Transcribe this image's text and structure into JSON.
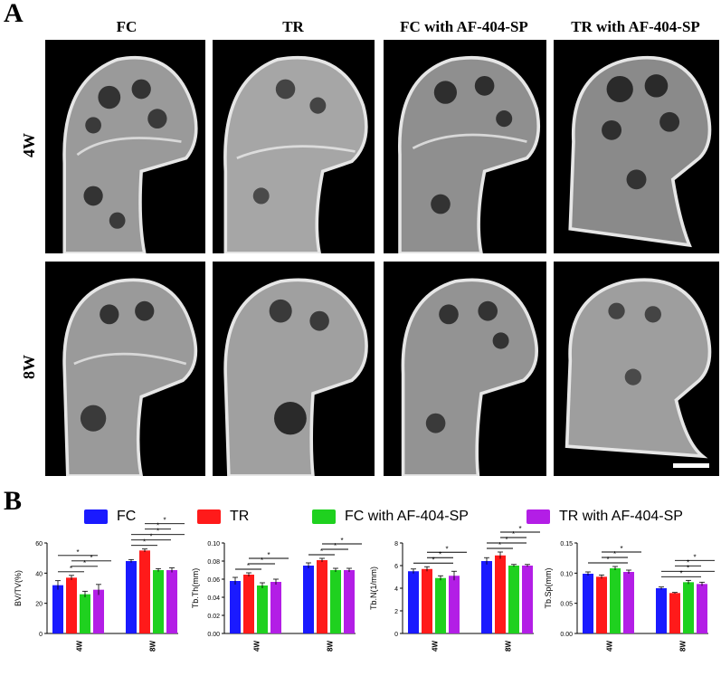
{
  "panels": {
    "a": "A",
    "b": "B"
  },
  "columns": [
    "FC",
    "TR",
    "FC with AF-404-SP",
    "TR with AF-404-SP"
  ],
  "rows": [
    "4W",
    "8W"
  ],
  "legend": [
    {
      "label": "FC",
      "color": "#1a1aff"
    },
    {
      "label": "TR",
      "color": "#ff1a1a"
    },
    {
      "label": "FC with AF-404-SP",
      "color": "#1fd11f"
    },
    {
      "label": "TR with AF-404-SP",
      "color": "#b31ee6"
    }
  ],
  "colors": {
    "FC": "#1a1aff",
    "TR": "#ff1a1a",
    "FCAF": "#1fd11f",
    "TRAF": "#b31ee6",
    "tile_bg": "#000000",
    "bone": "#cfcfcf"
  },
  "chart_data": [
    {
      "type": "bar",
      "ylabel": "BV/TV(%)",
      "categories": [
        "4W",
        "8W"
      ],
      "ylim": [
        0,
        60
      ],
      "yticks": [
        "0",
        "20",
        "40",
        "60"
      ],
      "significance_marker": "*",
      "series": [
        {
          "name": "FC",
          "values": [
            32,
            48
          ],
          "errors": [
            3,
            1
          ]
        },
        {
          "name": "TR",
          "values": [
            37,
            55
          ],
          "errors": [
            1.5,
            1
          ]
        },
        {
          "name": "FC with AF-404-SP",
          "values": [
            26,
            42
          ],
          "errors": [
            2,
            1
          ]
        },
        {
          "name": "TR with AF-404-SP",
          "values": [
            29,
            42
          ],
          "errors": [
            3.5,
            1.5
          ]
        }
      ],
      "brackets": [
        [
          0,
          0,
          1
        ],
        [
          0,
          1,
          2
        ],
        [
          0,
          1,
          3
        ],
        [
          0,
          0,
          2
        ],
        [
          1,
          0,
          1
        ],
        [
          1,
          0,
          2
        ],
        [
          1,
          0,
          3
        ],
        [
          1,
          1,
          2
        ],
        [
          1,
          1,
          3
        ]
      ]
    },
    {
      "type": "bar",
      "ylabel": "Tb.Th(mm)",
      "categories": [
        "4W",
        "8W"
      ],
      "ylim": [
        0,
        0.1
      ],
      "yticks": [
        "0.00",
        "0.02",
        "0.04",
        "0.06",
        "0.08",
        "0.10"
      ],
      "significance_marker": "*",
      "series": [
        {
          "name": "FC",
          "values": [
            0.058,
            0.075
          ],
          "errors": [
            0.004,
            0.003
          ]
        },
        {
          "name": "TR",
          "values": [
            0.065,
            0.081
          ],
          "errors": [
            0.002,
            0.002
          ]
        },
        {
          "name": "FC with AF-404-SP",
          "values": [
            0.053,
            0.07
          ],
          "errors": [
            0.003,
            0.002
          ]
        },
        {
          "name": "TR with AF-404-SP",
          "values": [
            0.057,
            0.07
          ],
          "errors": [
            0.003,
            0.002
          ]
        }
      ],
      "brackets": [
        [
          0,
          0,
          1
        ],
        [
          0,
          1,
          2
        ],
        [
          0,
          1,
          3
        ],
        [
          1,
          0,
          1
        ],
        [
          1,
          1,
          2
        ],
        [
          1,
          1,
          3
        ]
      ]
    },
    {
      "type": "bar",
      "ylabel": "Tb.N(1/mm)",
      "categories": [
        "4W",
        "8W"
      ],
      "ylim": [
        0,
        8
      ],
      "yticks": [
        "0",
        "2",
        "4",
        "6",
        "8"
      ],
      "significance_marker": "*",
      "series": [
        {
          "name": "FC",
          "values": [
            5.5,
            6.4
          ],
          "errors": [
            0.2,
            0.3
          ]
        },
        {
          "name": "TR",
          "values": [
            5.7,
            6.9
          ],
          "errors": [
            0.2,
            0.3
          ]
        },
        {
          "name": "FC with AF-404-SP",
          "values": [
            4.9,
            6.0
          ],
          "errors": [
            0.2,
            0.1
          ]
        },
        {
          "name": "TR with AF-404-SP",
          "values": [
            5.1,
            6.0
          ],
          "errors": [
            0.4,
            0.1
          ]
        }
      ],
      "brackets": [
        [
          0,
          0,
          2
        ],
        [
          0,
          1,
          2
        ],
        [
          0,
          1,
          3
        ],
        [
          1,
          0,
          1
        ],
        [
          1,
          0,
          2
        ],
        [
          1,
          1,
          2
        ],
        [
          1,
          1,
          3
        ]
      ]
    },
    {
      "type": "bar",
      "ylabel": "Tb.Sp(mm)",
      "categories": [
        "4W",
        "8W"
      ],
      "ylim": [
        0,
        0.15
      ],
      "yticks": [
        "0.00",
        "0.05",
        "0.10",
        "0.15"
      ],
      "significance_marker": "*",
      "series": [
        {
          "name": "FC",
          "values": [
            0.099,
            0.075
          ],
          "errors": [
            0.003,
            0.002
          ]
        },
        {
          "name": "TR",
          "values": [
            0.094,
            0.067
          ],
          "errors": [
            0.003,
            0.001
          ]
        },
        {
          "name": "FC with AF-404-SP",
          "values": [
            0.108,
            0.085
          ],
          "errors": [
            0.003,
            0.003
          ]
        },
        {
          "name": "TR with AF-404-SP",
          "values": [
            0.102,
            0.082
          ],
          "errors": [
            0.003,
            0.003
          ]
        }
      ],
      "brackets": [
        [
          0,
          0,
          2
        ],
        [
          0,
          1,
          2
        ],
        [
          0,
          1,
          3
        ],
        [
          1,
          0,
          2
        ],
        [
          1,
          0,
          3
        ],
        [
          1,
          1,
          2
        ],
        [
          1,
          1,
          3
        ]
      ]
    }
  ]
}
